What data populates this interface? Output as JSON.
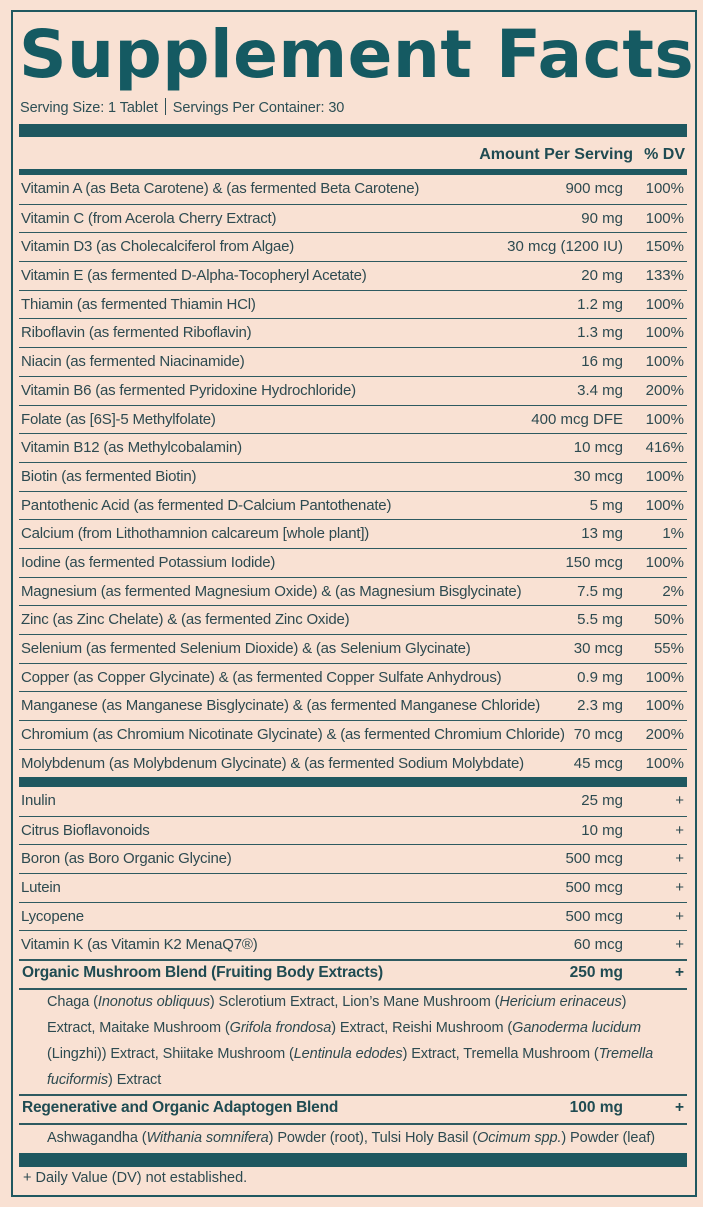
{
  "title": "Supplement Facts",
  "serving": {
    "size": "Serving Size: 1 Tablet",
    "per_container": "Servings Per Container: 30"
  },
  "columns": {
    "amount": "Amount Per Serving",
    "dv": "% DV"
  },
  "vitamins": [
    {
      "name": "Vitamin A (as Beta Carotene) & (as fermented Beta Carotene)",
      "amount": "900 mcg",
      "dv": "100%"
    },
    {
      "name": "Vitamin C (from Acerola Cherry Extract)",
      "amount": "90 mg",
      "dv": "100%"
    },
    {
      "name": "Vitamin D3 (as Cholecalciferol from Algae)",
      "amount": "30 mcg (1200 IU)",
      "dv": "150%"
    },
    {
      "name": "Vitamin E (as fermented D-Alpha-Tocopheryl Acetate)",
      "amount": "20 mg",
      "dv": "133%"
    },
    {
      "name": "Thiamin (as fermented Thiamin HCl)",
      "amount": "1.2 mg",
      "dv": "100%"
    },
    {
      "name": "Riboflavin (as fermented Riboflavin)",
      "amount": "1.3 mg",
      "dv": "100%"
    },
    {
      "name": "Niacin (as fermented Niacinamide)",
      "amount": "16 mg",
      "dv": "100%"
    },
    {
      "name": "Vitamin B6 (as fermented Pyridoxine Hydrochloride)",
      "amount": "3.4 mg",
      "dv": "200%"
    },
    {
      "name": "Folate (as [6S]-5 Methylfolate)",
      "amount": "400 mcg DFE",
      "dv": "100%"
    },
    {
      "name": "Vitamin B12 (as Methylcobalamin)",
      "amount": "10 mcg",
      "dv": "416%"
    },
    {
      "name": "Biotin (as fermented Biotin)",
      "amount": "30 mcg",
      "dv": "100%"
    },
    {
      "name": "Pantothenic Acid (as fermented D-Calcium Pantothenate)",
      "amount": "5 mg",
      "dv": "100%"
    },
    {
      "name": "Calcium (from Lithothamnion calcareum [whole plant])",
      "amount": "13 mg",
      "dv": "1%"
    },
    {
      "name": "Iodine (as fermented Potassium Iodide)",
      "amount": "150 mcg",
      "dv": "100%"
    },
    {
      "name": "Magnesium (as fermented Magnesium Oxide) & (as Magnesium Bisglycinate)",
      "amount": "7.5 mg",
      "dv": "2%"
    },
    {
      "name": "Zinc (as Zinc Chelate) & (as fermented Zinc Oxide)",
      "amount": "5.5 mg",
      "dv": "50%"
    },
    {
      "name": "Selenium (as fermented Selenium Dioxide) & (as Selenium Glycinate)",
      "amount": "30 mcg",
      "dv": "55%"
    },
    {
      "name": "Copper (as Copper Glycinate) & (as fermented Copper Sulfate Anhydrous)",
      "amount": "0.9 mg",
      "dv": "100%"
    },
    {
      "name": "Manganese (as Manganese Bisglycinate) & (as fermented Manganese Chloride)",
      "amount": "2.3 mg",
      "dv": "100%"
    },
    {
      "name": "Chromium (as Chromium Nicotinate Glycinate) & (as fermented Chromium Chloride)",
      "amount": "70 mcg",
      "dv": "200%"
    },
    {
      "name": "Molybdenum (as Molybdenum Glycinate) & (as fermented Sodium Molybdate)",
      "amount": "45 mcg",
      "dv": "100%"
    }
  ],
  "others": [
    {
      "name": "Inulin",
      "amount": "25 mg",
      "dv": "+"
    },
    {
      "name": "Citrus Bioflavonoids",
      "amount": "10 mg",
      "dv": "+"
    },
    {
      "name": "Boron (as Boro Organic Glycine)",
      "amount": "500 mcg",
      "dv": "+"
    },
    {
      "name": "Lutein",
      "amount": "500 mcg",
      "dv": "+"
    },
    {
      "name": "Lycopene",
      "amount": "500 mcg",
      "dv": "+"
    },
    {
      "name": "Vitamin K (as Vitamin K2 MenaQ7®)",
      "amount": "60 mcg",
      "dv": "+"
    }
  ],
  "mushroom_blend": {
    "name": "Organic Mushroom Blend (Fruiting Body Extracts)",
    "amount": "250 mg",
    "dv": "+",
    "description_parts": [
      {
        "t": "Chaga (",
        "i": false
      },
      {
        "t": "Inonotus obliquus",
        "i": true
      },
      {
        "t": ") Sclerotium Extract, Lion’s Mane Mushroom (",
        "i": false
      },
      {
        "t": "Hericium erinaceus",
        "i": true
      },
      {
        "t": ") Extract, Maitake Mushroom (",
        "i": false
      },
      {
        "t": "Grifola frondosa",
        "i": true
      },
      {
        "t": ") Extract, Reishi Mushroom (",
        "i": false
      },
      {
        "t": "Ganoderma lucidum",
        "i": true
      },
      {
        "t": " (Lingzhi)) Extract, Shiitake Mushroom (",
        "i": false
      },
      {
        "t": "Lentinula edodes",
        "i": true
      },
      {
        "t": ") Extract, Tremella Mushroom (",
        "i": false
      },
      {
        "t": "Tremella fuciformis",
        "i": true
      },
      {
        "t": ") Extract",
        "i": false
      }
    ]
  },
  "adaptogen_blend": {
    "name": "Regenerative and Organic Adaptogen Blend",
    "amount": "100 mg",
    "dv": "+",
    "description_parts": [
      {
        "t": "Ashwagandha (",
        "i": false
      },
      {
        "t": "Withania somnifera",
        "i": true
      },
      {
        "t": ") Powder (root), Tulsi Holy Basil (",
        "i": false
      },
      {
        "t": "Ocimum spp.",
        "i": true
      },
      {
        "t": ") Powder (leaf)",
        "i": false
      }
    ]
  },
  "footnote": "+ Daily Value (DV) not established.",
  "colors": {
    "background": "#f9e1d3",
    "accent": "#1f5860",
    "title": "#155a62",
    "text": "#2d4a50"
  }
}
